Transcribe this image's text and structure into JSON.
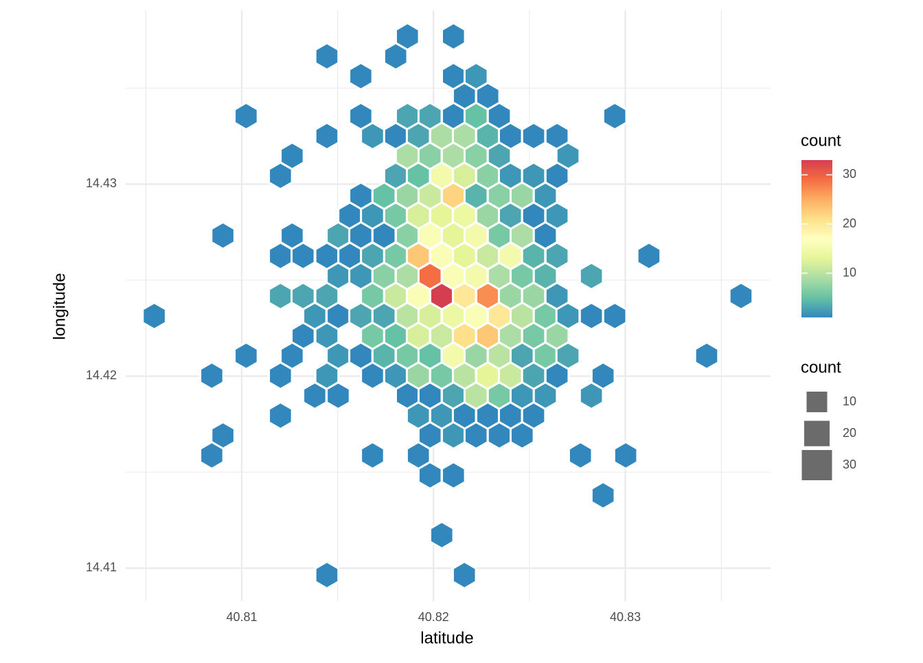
{
  "chart_data": {
    "type": "hexbin",
    "x_label": "latitude",
    "y_label": "longitude",
    "xlim": [
      40.80395,
      40.83757
    ],
    "ylim": [
      14.40828,
      14.43905
    ],
    "xticks": [
      40.81,
      40.82,
      40.83
    ],
    "yticks": [
      14.41,
      14.42,
      14.43
    ],
    "xminor": [
      40.805,
      40.815,
      40.825,
      40.835
    ],
    "yminor": [
      14.415,
      14.425,
      14.435
    ],
    "grid": true,
    "palette": [
      "#3288bd",
      "#66c2a5",
      "#abdda4",
      "#e6f598",
      "#ffffbf",
      "#fee08b",
      "#fdae61",
      "#f46d43",
      "#d53e4f"
    ],
    "color_lim": [
      1,
      33
    ],
    "color_legend_title": "count",
    "color_legend_ticks": [
      10,
      20,
      30
    ],
    "size_legend_title": "count",
    "size_legend_values": [
      10,
      20,
      30
    ],
    "x": [
      40.81864,
      40.82104,
      40.81444,
      40.81803,
      40.81621,
      40.82104,
      40.82222,
      40.82161,
      40.82283,
      40.81023,
      40.81621,
      40.81864,
      40.81982,
      40.82104,
      40.82222,
      40.82343,
      40.82945,
      40.81444,
      40.81682,
      40.81803,
      40.81921,
      40.82043,
      40.82161,
      40.82283,
      40.82401,
      40.82522,
      40.82644,
      40.81263,
      40.81864,
      40.81982,
      40.82104,
      40.82222,
      40.82343,
      40.82701,
      40.81202,
      40.81803,
      40.81921,
      40.82043,
      40.82161,
      40.82283,
      40.82401,
      40.82522,
      40.82644,
      40.81621,
      40.81742,
      40.81864,
      40.81982,
      40.82104,
      40.82222,
      40.82343,
      40.82462,
      40.82583,
      40.81564,
      40.81682,
      40.81803,
      40.81921,
      40.82043,
      40.82161,
      40.82283,
      40.82401,
      40.82522,
      40.82644,
      40.80902,
      40.81263,
      40.81503,
      40.81621,
      40.81742,
      40.81864,
      40.81982,
      40.82104,
      40.82222,
      40.82343,
      40.82462,
      40.82583,
      40.81202,
      40.8132,
      40.81444,
      40.81564,
      40.81682,
      40.81803,
      40.81921,
      40.82043,
      40.82161,
      40.82283,
      40.82401,
      40.82522,
      40.82644,
      40.83123,
      40.81503,
      40.81621,
      40.81742,
      40.81864,
      40.81982,
      40.82104,
      40.82222,
      40.82343,
      40.82462,
      40.82583,
      40.82823,
      40.81202,
      40.8132,
      40.81444,
      40.81682,
      40.81803,
      40.81921,
      40.82043,
      40.82161,
      40.82283,
      40.82401,
      40.82522,
      40.82644,
      40.83603,
      40.80544,
      40.81381,
      40.81503,
      40.81621,
      40.81742,
      40.81864,
      40.81982,
      40.82104,
      40.82222,
      40.82343,
      40.82462,
      40.82583,
      40.82701,
      40.82823,
      40.82945,
      40.8132,
      40.81444,
      40.81682,
      40.81803,
      40.81921,
      40.82043,
      40.82161,
      40.82283,
      40.82401,
      40.82522,
      40.82644,
      40.81023,
      40.81263,
      40.81503,
      40.81621,
      40.81742,
      40.81864,
      40.81982,
      40.82104,
      40.82222,
      40.82343,
      40.82462,
      40.82583,
      40.82701,
      40.83424,
      40.80844,
      40.81202,
      40.81444,
      40.81682,
      40.81803,
      40.81921,
      40.82043,
      40.82161,
      40.82283,
      40.82401,
      40.82522,
      40.82644,
      40.82884,
      40.81381,
      40.81503,
      40.81864,
      40.81982,
      40.82104,
      40.82222,
      40.82343,
      40.82462,
      40.82583,
      40.82823,
      40.81202,
      40.81921,
      40.82043,
      40.82161,
      40.82283,
      40.82401,
      40.82522,
      40.80902,
      40.81982,
      40.82104,
      40.82222,
      40.82343,
      40.82462,
      40.80844,
      40.81682,
      40.81921,
      40.82766,
      40.83002,
      40.81982,
      40.82104,
      40.82884,
      40.82043,
      40.81444,
      40.82161
    ],
    "y": [
      14.43769,
      14.43769,
      14.43665,
      14.43665,
      14.43562,
      14.43562,
      14.43562,
      14.43458,
      14.43458,
      14.43354,
      14.43354,
      14.43354,
      14.43354,
      14.43354,
      14.43354,
      14.43354,
      14.43354,
      14.4325,
      14.4325,
      14.4325,
      14.4325,
      14.4325,
      14.4325,
      14.4325,
      14.4325,
      14.4325,
      14.4325,
      14.43147,
      14.43147,
      14.43147,
      14.43147,
      14.43147,
      14.43147,
      14.43147,
      14.43043,
      14.43043,
      14.43043,
      14.43043,
      14.43043,
      14.43043,
      14.43043,
      14.43043,
      14.43043,
      14.42939,
      14.42939,
      14.42939,
      14.42939,
      14.42939,
      14.42939,
      14.42939,
      14.42939,
      14.42939,
      14.42835,
      14.42835,
      14.42835,
      14.42835,
      14.42835,
      14.42835,
      14.42835,
      14.42835,
      14.42835,
      14.42835,
      14.42732,
      14.42732,
      14.42732,
      14.42732,
      14.42732,
      14.42732,
      14.42732,
      14.42732,
      14.42732,
      14.42732,
      14.42732,
      14.42732,
      14.42626,
      14.42626,
      14.42626,
      14.42626,
      14.42626,
      14.42626,
      14.42626,
      14.42626,
      14.42626,
      14.42626,
      14.42626,
      14.42626,
      14.42626,
      14.42626,
      14.42521,
      14.42521,
      14.42521,
      14.42521,
      14.42521,
      14.42521,
      14.42521,
      14.42521,
      14.42521,
      14.42521,
      14.42521,
      14.42417,
      14.42417,
      14.42417,
      14.42417,
      14.42417,
      14.42417,
      14.42417,
      14.42417,
      14.42417,
      14.42417,
      14.42417,
      14.42417,
      14.42417,
      14.42313,
      14.42313,
      14.42313,
      14.42313,
      14.42313,
      14.42313,
      14.42313,
      14.42313,
      14.42313,
      14.42313,
      14.42313,
      14.42313,
      14.42313,
      14.42313,
      14.42313,
      14.42209,
      14.42209,
      14.42209,
      14.42209,
      14.42209,
      14.42209,
      14.42209,
      14.42209,
      14.42209,
      14.42209,
      14.42209,
      14.42106,
      14.42106,
      14.42106,
      14.42106,
      14.42106,
      14.42106,
      14.42106,
      14.42106,
      14.42106,
      14.42106,
      14.42106,
      14.42106,
      14.42106,
      14.42106,
      14.42002,
      14.42002,
      14.42002,
      14.42002,
      14.42002,
      14.42002,
      14.42002,
      14.42002,
      14.42002,
      14.42002,
      14.42002,
      14.42002,
      14.42002,
      14.41898,
      14.41898,
      14.41898,
      14.41898,
      14.41898,
      14.41898,
      14.41898,
      14.41898,
      14.41898,
      14.41898,
      14.41794,
      14.41794,
      14.41794,
      14.41794,
      14.41794,
      14.41794,
      14.41794,
      14.41691,
      14.41691,
      14.41691,
      14.41691,
      14.41691,
      14.41691,
      14.41587,
      14.41587,
      14.41587,
      14.41587,
      14.41587,
      14.41483,
      14.41483,
      14.41379,
      14.41172,
      14.40964,
      14.40964
    ],
    "values": [
      1,
      1,
      1,
      1,
      1,
      1,
      2,
      1,
      1,
      1,
      1,
      3,
      3,
      1,
      5,
      1,
      1,
      1,
      2,
      1,
      3,
      9,
      9,
      4,
      1,
      1,
      1,
      1,
      9,
      7,
      9,
      7,
      3,
      2,
      1,
      3,
      5,
      15,
      12,
      7,
      2,
      2,
      1,
      1,
      5,
      8,
      11,
      22,
      4,
      7,
      8,
      2,
      1,
      2,
      6,
      12,
      13,
      14,
      8,
      3,
      1,
      2,
      1,
      1,
      3,
      1,
      1,
      7,
      16,
      13,
      15,
      6,
      9,
      1,
      1,
      1,
      1,
      1,
      3,
      6,
      23,
      16,
      13,
      11,
      15,
      4,
      3,
      1,
      2,
      2,
      7,
      9,
      29,
      16,
      15,
      9,
      6,
      4,
      3,
      3,
      3,
      3,
      6,
      11,
      16,
      33,
      20,
      27,
      8,
      8,
      2,
      1,
      1,
      2,
      1,
      3,
      3,
      10,
      12,
      14,
      16,
      20,
      10,
      6,
      2,
      1,
      1,
      1,
      2,
      6,
      5,
      12,
      11,
      21,
      23,
      9,
      6,
      8,
      1,
      1,
      2,
      1,
      4,
      6,
      5,
      15,
      8,
      10,
      3,
      6,
      3,
      1,
      1,
      1,
      2,
      1,
      2,
      8,
      6,
      10,
      13,
      11,
      3,
      1,
      1,
      1,
      1,
      1,
      1,
      3,
      10,
      6,
      2,
      2,
      2,
      1,
      2,
      2,
      1,
      1,
      1,
      1,
      1,
      1,
      2,
      1,
      1,
      1,
      1,
      1,
      1,
      1,
      1,
      1,
      1,
      1,
      1,
      1,
      1
    ]
  }
}
